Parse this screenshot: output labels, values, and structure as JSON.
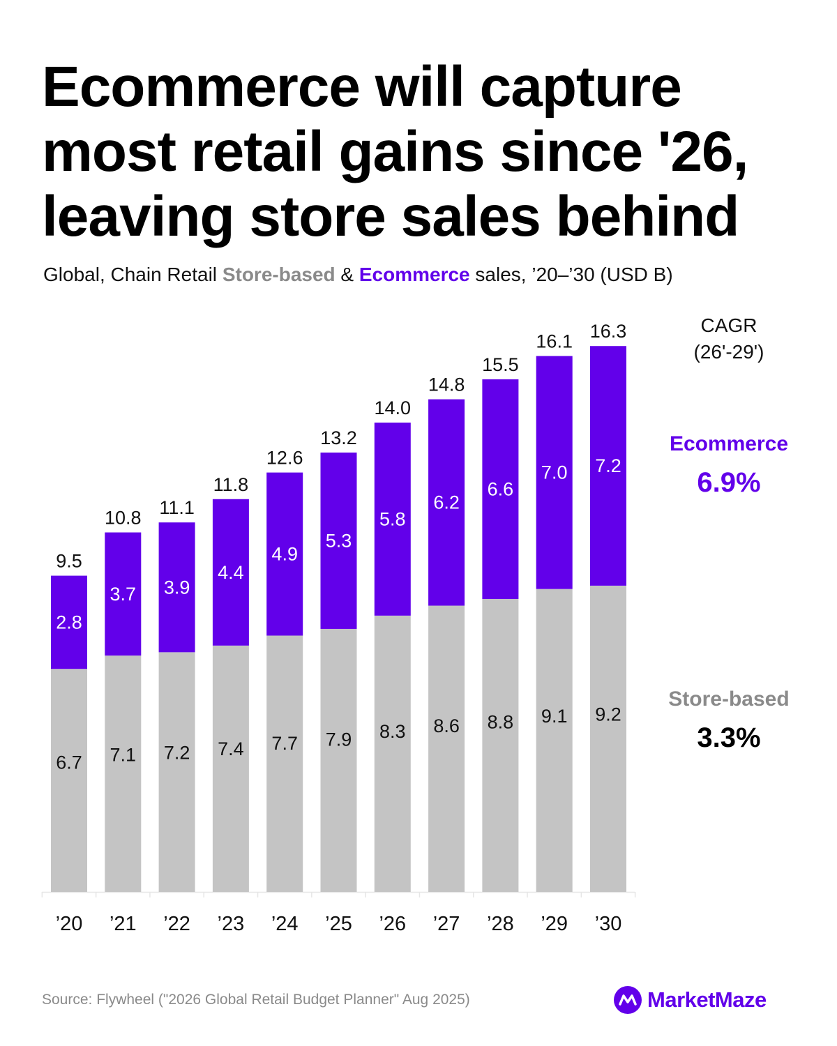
{
  "header": {
    "title": "Ecommerce will capture most retail gains since '26, leaving store sales behind",
    "subtitle_pre": "Global, Chain Retail ",
    "subtitle_store": "Store-based",
    "subtitle_amp": " & ",
    "subtitle_ecom": "Ecommerce",
    "subtitle_post": " sales, ’20–’30 (USD B)"
  },
  "cagr": {
    "heading_line1": "CAGR",
    "heading_line2": "(26'-29')",
    "ecommerce_label": "Ecommerce",
    "ecommerce_value": "6.9%",
    "store_label": "Store-based",
    "store_value": "3.3%"
  },
  "colors": {
    "ecommerce": "#6200ea",
    "store": "#c4c4c4",
    "store_label": "#8a8a8a"
  },
  "chart_data": {
    "type": "bar",
    "stacked": true,
    "categories": [
      "’20",
      "’21",
      "’22",
      "’23",
      "’24",
      "’25",
      "’26",
      "’27",
      "’28",
      "’29",
      "’30"
    ],
    "series": [
      {
        "name": "Store-based",
        "values": [
          6.7,
          7.1,
          7.2,
          7.4,
          7.7,
          7.9,
          8.3,
          8.6,
          8.8,
          9.1,
          9.2
        ]
      },
      {
        "name": "Ecommerce",
        "values": [
          2.8,
          3.7,
          3.9,
          4.4,
          4.9,
          5.3,
          5.8,
          6.2,
          6.6,
          7.0,
          7.2
        ]
      }
    ],
    "totals": [
      9.5,
      10.8,
      11.1,
      11.8,
      12.6,
      13.2,
      14.0,
      14.8,
      15.5,
      16.1,
      16.3
    ],
    "ylim": [
      0,
      16.3
    ],
    "grid": false,
    "legend": "none"
  },
  "footer": {
    "source": "Source: Flywheel (\"2026 Global Retail Budget Planner\" Aug 2025)",
    "brand": "MarketMaze"
  }
}
